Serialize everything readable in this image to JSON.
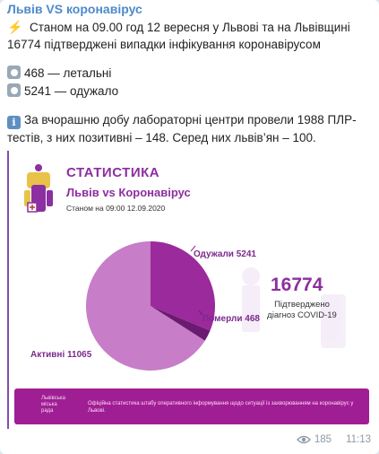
{
  "channel": {
    "title": "Львів VS коронавірус"
  },
  "message": {
    "line1_icon": "lightning-icon",
    "line1": "Станом на 09.00 год 12 вересня у Львові та на Львівщині",
    "line2": "16774 підтверджені випадки інфікування коронавірусом",
    "deaths": "468 — летальні",
    "recovered": "5241 — одужало",
    "para_line1": "За вчорашню добу лабораторні центри провели 1988 ПЛР-",
    "para_line2": "тестів, з них позитивні – 148. Серед них львів’ян – 100."
  },
  "infographic": {
    "title": "СТАТИСТИКА",
    "subtitle": "Львів vs Коронавірус",
    "date": "Станом на 09:00 12.09.2020",
    "total_number": "16774",
    "total_caption_1": "Підтверджено",
    "total_caption_2": "діагноз COVID-19",
    "footer_city_1": "Львівська",
    "footer_city_2": "міська",
    "footer_city_3": "рада",
    "footer_text": "Офіційна статистика штабу оперативного інформування щодо ситуації із захворюванням на коронавірус у Львові."
  },
  "chart_data": {
    "type": "pie",
    "slices": [
      {
        "label": "Одужали 5241",
        "value": 5241,
        "color": "#9b2a9c"
      },
      {
        "label": "Померли 468",
        "value": 468,
        "color": "#6a1b71"
      },
      {
        "label": "Активні 11065",
        "value": 11065,
        "color": "#c77dc7"
      }
    ]
  },
  "footer": {
    "views": "185",
    "time": "11:13"
  }
}
